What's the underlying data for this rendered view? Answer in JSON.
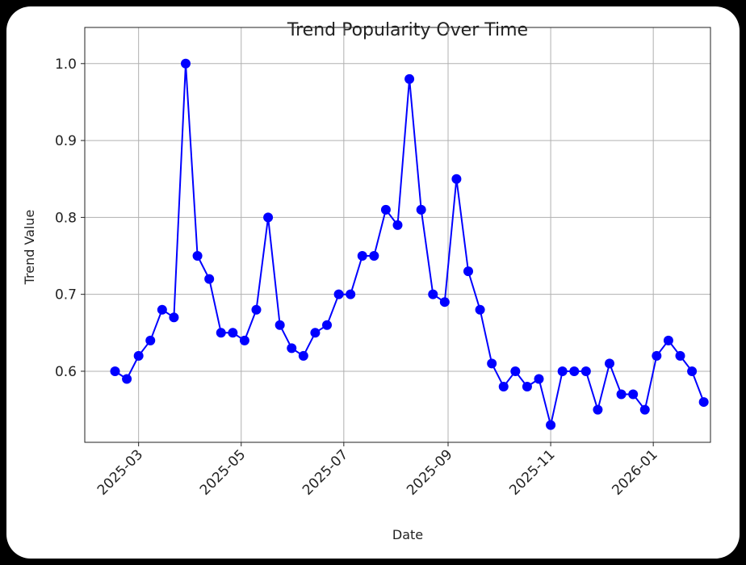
{
  "chart_data": {
    "type": "line",
    "title": "Trend Popularity Over Time",
    "xlabel": "Date",
    "ylabel": "Trend Value",
    "x": [
      "2025-02-15",
      "2025-02-22",
      "2025-03-01",
      "2025-03-08",
      "2025-03-15",
      "2025-03-22",
      "2025-03-29",
      "2025-04-05",
      "2025-04-12",
      "2025-04-19",
      "2025-04-26",
      "2025-05-03",
      "2025-05-10",
      "2025-05-17",
      "2025-05-24",
      "2025-05-31",
      "2025-06-07",
      "2025-06-14",
      "2025-06-21",
      "2025-06-28",
      "2025-07-05",
      "2025-07-12",
      "2025-07-19",
      "2025-07-26",
      "2025-08-02",
      "2025-08-09",
      "2025-08-16",
      "2025-08-23",
      "2025-08-30",
      "2025-09-06",
      "2025-09-13",
      "2025-09-20",
      "2025-09-27",
      "2025-10-04",
      "2025-10-11",
      "2025-10-18",
      "2025-10-25",
      "2025-11-01",
      "2025-11-08",
      "2025-11-15",
      "2025-11-22",
      "2025-11-29",
      "2025-12-06",
      "2025-12-13",
      "2025-12-20",
      "2025-12-27",
      "2026-01-03",
      "2026-01-10",
      "2026-01-17",
      "2026-01-24",
      "2026-01-31"
    ],
    "values": [
      0.6,
      0.59,
      0.62,
      0.64,
      0.68,
      0.67,
      1.0,
      0.75,
      0.72,
      0.65,
      0.65,
      0.64,
      0.68,
      0.8,
      0.66,
      0.63,
      0.62,
      0.65,
      0.66,
      0.7,
      0.7,
      0.75,
      0.75,
      0.81,
      0.79,
      0.98,
      0.81,
      0.7,
      0.69,
      0.85,
      0.73,
      0.68,
      0.61,
      0.58,
      0.6,
      0.58,
      0.59,
      0.53,
      0.6,
      0.6,
      0.6,
      0.55,
      0.61,
      0.57,
      0.57,
      0.55,
      0.62,
      0.64,
      0.62,
      0.6,
      0.56
    ],
    "color": "#0000ff",
    "xlim": [
      "2025-01-28",
      "2026-02-04"
    ],
    "xticks": [
      {
        "value": "2025-03-01",
        "label": "2025-03"
      },
      {
        "value": "2025-05-01",
        "label": "2025-05"
      },
      {
        "value": "2025-07-01",
        "label": "2025-07"
      },
      {
        "value": "2025-09-01",
        "label": "2025-09"
      },
      {
        "value": "2025-11-01",
        "label": "2025-11"
      },
      {
        "value": "2026-01-01",
        "label": "2026-01"
      }
    ],
    "ylim": [
      0.5076,
      1.047
    ],
    "yticks": [
      0.6,
      0.7,
      0.8,
      0.9,
      {
        "value": 1,
        "label": "1.0"
      }
    ],
    "grid": true
  }
}
